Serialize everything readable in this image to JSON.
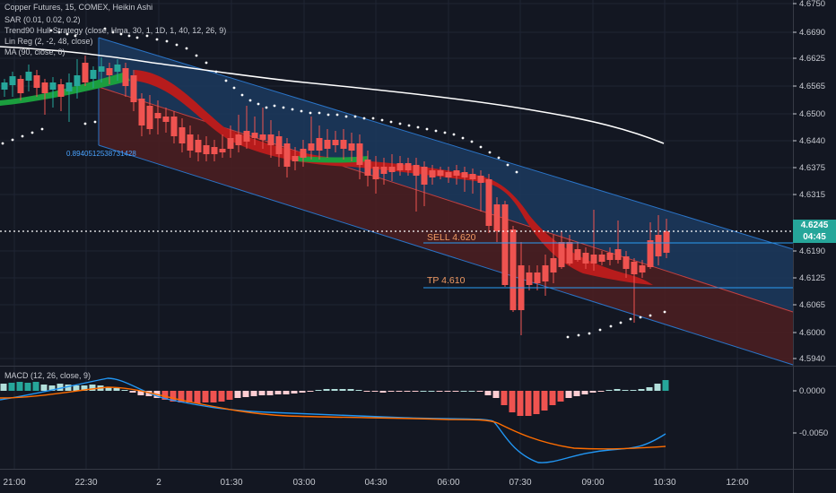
{
  "legend": {
    "symbol": "Copper Futures, 15, COMEX, Heikin Ashi",
    "sar": "SAR (0.01, 0.02, 0.2)",
    "strategy": "Trend90 Hull Strategy (close, Hma, 30, 1, 1D, 1, 40, 12, 26, 9)",
    "linreg": "Lin Reg (2, -2, 48, close)",
    "ma": "MA (90, close, 0)",
    "macd": "MACD (12, 26, close, 9)"
  },
  "linreg_value": "0.8940512538731428",
  "price_axis": {
    "ticks": [
      "4.6750",
      "4.6690",
      "4.6625",
      "4.6565",
      "4.6500",
      "4.6440",
      "4.6375",
      "4.6315",
      "4.6190",
      "4.6125",
      "4.6065",
      "4.6000",
      "4.5940"
    ],
    "current_price": "4.6245",
    "countdown": "04:45"
  },
  "macd_axis": {
    "ticks": [
      "0.0000",
      "-0.0050"
    ]
  },
  "time_axis": {
    "labels": [
      "21:00",
      "22:30",
      "2",
      "01:30",
      "03:00",
      "04:30",
      "06:00",
      "07:30",
      "09:00",
      "10:30",
      "12:00"
    ]
  },
  "orders": {
    "sell_label": "SELL 4.620",
    "tp_label": "TP 4.610"
  },
  "colors": {
    "bull": "#26a69a",
    "bear": "#ef5350",
    "hull_bear": "#b71c1c",
    "hull_bull": "#1b9e3e",
    "channel_up": "#1c3a5e",
    "channel_down": "#4a1e21",
    "macd_line": "#2196f3",
    "signal_line": "#ff6d00",
    "ma_line": "#ffffff"
  }
}
